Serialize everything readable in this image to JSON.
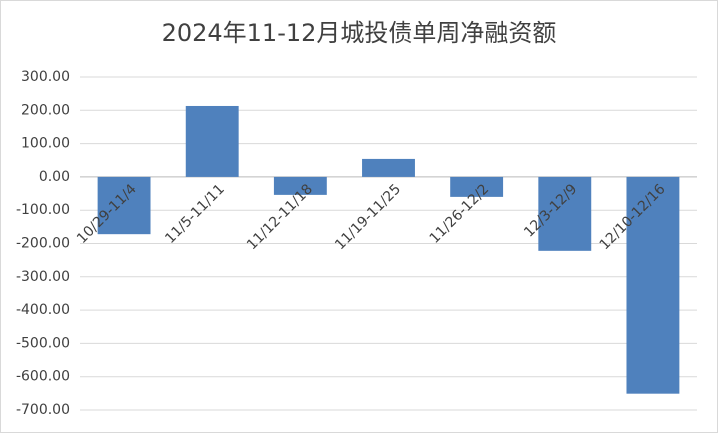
{
  "chart_data": {
    "type": "bar",
    "title": "2024年11-12月城投债单周净融资额",
    "categories": [
      "10/29-11/4",
      "11/5-11/11",
      "11/12-11/18",
      "11/19-11/25",
      "11/26-12/2",
      "12/3-12/9",
      "12/10-12/16"
    ],
    "values": [
      -172,
      213,
      -54,
      54,
      -60,
      -222,
      -651
    ],
    "color": "#4f81bd",
    "ylim": [
      -700,
      300
    ],
    "yticks": [
      {
        "value": 300,
        "label": "300.00"
      },
      {
        "value": 200,
        "label": "200.00"
      },
      {
        "value": 100,
        "label": "100.00"
      },
      {
        "value": 0,
        "label": "0.00"
      },
      {
        "value": -100,
        "label": "-100.00"
      },
      {
        "value": -200,
        "label": "-200.00"
      },
      {
        "value": -300,
        "label": "-300.00"
      },
      {
        "value": -400,
        "label": "-400.00"
      },
      {
        "value": -500,
        "label": "-500.00"
      },
      {
        "value": -600,
        "label": "-600.00"
      },
      {
        "value": -700,
        "label": "-700.00"
      }
    ],
    "grid": true
  }
}
